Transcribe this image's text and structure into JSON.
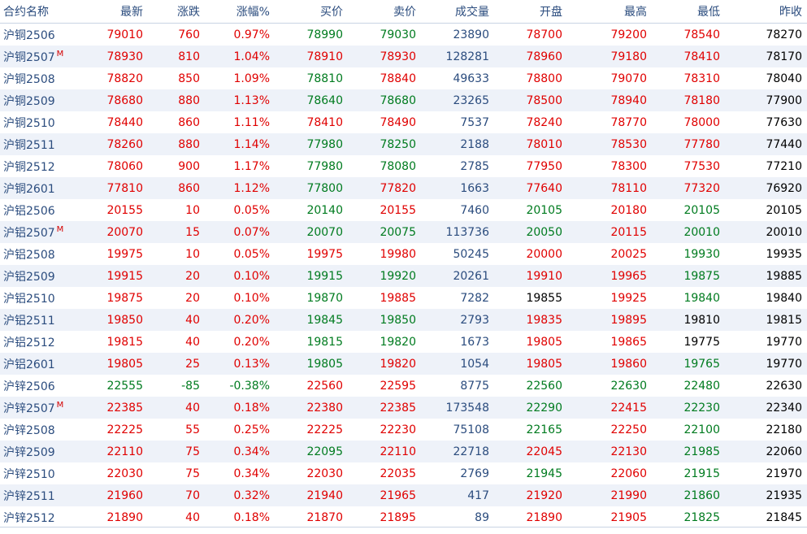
{
  "headers": [
    "合约名称",
    "最新",
    "涨跌",
    "涨幅%",
    "买价",
    "卖价",
    "成交量",
    "开盘",
    "最高",
    "最低",
    "昨收"
  ],
  "colors": {
    "up": "#e00000",
    "down": "#007b1f",
    "flat": "#000000",
    "volume": "#2b4c7e"
  },
  "rows": [
    {
      "name": "沪铜2506",
      "mark": "",
      "cells": [
        [
          "79010",
          "up"
        ],
        [
          "760",
          "up"
        ],
        [
          "0.97%",
          "up"
        ],
        [
          "78990",
          "down"
        ],
        [
          "79030",
          "down"
        ],
        [
          "23890",
          "vol"
        ],
        [
          "78700",
          "up"
        ],
        [
          "79200",
          "up"
        ],
        [
          "78540",
          "up"
        ],
        [
          "78270",
          "flat"
        ]
      ]
    },
    {
      "name": "沪铜2507",
      "mark": "M",
      "cells": [
        [
          "78930",
          "up"
        ],
        [
          "810",
          "up"
        ],
        [
          "1.04%",
          "up"
        ],
        [
          "78910",
          "up"
        ],
        [
          "78930",
          "up"
        ],
        [
          "128281",
          "vol"
        ],
        [
          "78960",
          "up"
        ],
        [
          "79180",
          "up"
        ],
        [
          "78410",
          "up"
        ],
        [
          "78170",
          "flat"
        ]
      ]
    },
    {
      "name": "沪铜2508",
      "mark": "",
      "cells": [
        [
          "78820",
          "up"
        ],
        [
          "850",
          "up"
        ],
        [
          "1.09%",
          "up"
        ],
        [
          "78810",
          "down"
        ],
        [
          "78840",
          "up"
        ],
        [
          "49633",
          "vol"
        ],
        [
          "78800",
          "up"
        ],
        [
          "79070",
          "up"
        ],
        [
          "78310",
          "up"
        ],
        [
          "78040",
          "flat"
        ]
      ]
    },
    {
      "name": "沪铜2509",
      "mark": "",
      "cells": [
        [
          "78680",
          "up"
        ],
        [
          "880",
          "up"
        ],
        [
          "1.13%",
          "up"
        ],
        [
          "78640",
          "down"
        ],
        [
          "78680",
          "down"
        ],
        [
          "23265",
          "vol"
        ],
        [
          "78500",
          "up"
        ],
        [
          "78940",
          "up"
        ],
        [
          "78180",
          "up"
        ],
        [
          "77900",
          "flat"
        ]
      ]
    },
    {
      "name": "沪铜2510",
      "mark": "",
      "cells": [
        [
          "78440",
          "up"
        ],
        [
          "860",
          "up"
        ],
        [
          "1.11%",
          "up"
        ],
        [
          "78410",
          "up"
        ],
        [
          "78490",
          "up"
        ],
        [
          "7537",
          "vol"
        ],
        [
          "78240",
          "up"
        ],
        [
          "78770",
          "up"
        ],
        [
          "78000",
          "up"
        ],
        [
          "77630",
          "flat"
        ]
      ]
    },
    {
      "name": "沪铜2511",
      "mark": "",
      "cells": [
        [
          "78260",
          "up"
        ],
        [
          "880",
          "up"
        ],
        [
          "1.14%",
          "up"
        ],
        [
          "77980",
          "down"
        ],
        [
          "78250",
          "down"
        ],
        [
          "2188",
          "vol"
        ],
        [
          "78010",
          "up"
        ],
        [
          "78530",
          "up"
        ],
        [
          "77780",
          "up"
        ],
        [
          "77440",
          "flat"
        ]
      ]
    },
    {
      "name": "沪铜2512",
      "mark": "",
      "cells": [
        [
          "78060",
          "up"
        ],
        [
          "900",
          "up"
        ],
        [
          "1.17%",
          "up"
        ],
        [
          "77980",
          "down"
        ],
        [
          "78080",
          "down"
        ],
        [
          "2785",
          "vol"
        ],
        [
          "77950",
          "up"
        ],
        [
          "78300",
          "up"
        ],
        [
          "77530",
          "up"
        ],
        [
          "77210",
          "flat"
        ]
      ]
    },
    {
      "name": "沪铜2601",
      "mark": "",
      "cells": [
        [
          "77810",
          "up"
        ],
        [
          "860",
          "up"
        ],
        [
          "1.12%",
          "up"
        ],
        [
          "77800",
          "down"
        ],
        [
          "77820",
          "up"
        ],
        [
          "1663",
          "vol"
        ],
        [
          "77640",
          "up"
        ],
        [
          "78110",
          "up"
        ],
        [
          "77320",
          "up"
        ],
        [
          "76920",
          "flat"
        ]
      ]
    },
    {
      "name": "沪铝2506",
      "mark": "",
      "cells": [
        [
          "20155",
          "up"
        ],
        [
          "10",
          "up"
        ],
        [
          "0.05%",
          "up"
        ],
        [
          "20140",
          "down"
        ],
        [
          "20155",
          "up"
        ],
        [
          "7460",
          "vol"
        ],
        [
          "20105",
          "down"
        ],
        [
          "20180",
          "up"
        ],
        [
          "20105",
          "down"
        ],
        [
          "20105",
          "flat"
        ]
      ]
    },
    {
      "name": "沪铝2507",
      "mark": "M",
      "cells": [
        [
          "20070",
          "up"
        ],
        [
          "15",
          "up"
        ],
        [
          "0.07%",
          "up"
        ],
        [
          "20070",
          "down"
        ],
        [
          "20075",
          "down"
        ],
        [
          "113736",
          "vol"
        ],
        [
          "20050",
          "down"
        ],
        [
          "20115",
          "up"
        ],
        [
          "20010",
          "down"
        ],
        [
          "20010",
          "flat"
        ]
      ]
    },
    {
      "name": "沪铝2508",
      "mark": "",
      "cells": [
        [
          "19975",
          "up"
        ],
        [
          "10",
          "up"
        ],
        [
          "0.05%",
          "up"
        ],
        [
          "19975",
          "up"
        ],
        [
          "19980",
          "up"
        ],
        [
          "50245",
          "vol"
        ],
        [
          "20000",
          "up"
        ],
        [
          "20025",
          "up"
        ],
        [
          "19930",
          "down"
        ],
        [
          "19935",
          "flat"
        ]
      ]
    },
    {
      "name": "沪铝2509",
      "mark": "",
      "cells": [
        [
          "19915",
          "up"
        ],
        [
          "20",
          "up"
        ],
        [
          "0.10%",
          "up"
        ],
        [
          "19915",
          "down"
        ],
        [
          "19920",
          "down"
        ],
        [
          "20261",
          "vol"
        ],
        [
          "19910",
          "up"
        ],
        [
          "19965",
          "up"
        ],
        [
          "19875",
          "down"
        ],
        [
          "19885",
          "flat"
        ]
      ]
    },
    {
      "name": "沪铝2510",
      "mark": "",
      "cells": [
        [
          "19875",
          "up"
        ],
        [
          "20",
          "up"
        ],
        [
          "0.10%",
          "up"
        ],
        [
          "19870",
          "down"
        ],
        [
          "19885",
          "up"
        ],
        [
          "7282",
          "vol"
        ],
        [
          "19855",
          "flat"
        ],
        [
          "19925",
          "up"
        ],
        [
          "19840",
          "down"
        ],
        [
          "19840",
          "flat"
        ]
      ]
    },
    {
      "name": "沪铝2511",
      "mark": "",
      "cells": [
        [
          "19850",
          "up"
        ],
        [
          "40",
          "up"
        ],
        [
          "0.20%",
          "up"
        ],
        [
          "19845",
          "down"
        ],
        [
          "19850",
          "down"
        ],
        [
          "2793",
          "vol"
        ],
        [
          "19835",
          "up"
        ],
        [
          "19895",
          "up"
        ],
        [
          "19810",
          "flat"
        ],
        [
          "19815",
          "flat"
        ]
      ]
    },
    {
      "name": "沪铝2512",
      "mark": "",
      "cells": [
        [
          "19815",
          "up"
        ],
        [
          "40",
          "up"
        ],
        [
          "0.20%",
          "up"
        ],
        [
          "19815",
          "down"
        ],
        [
          "19820",
          "down"
        ],
        [
          "1673",
          "vol"
        ],
        [
          "19805",
          "up"
        ],
        [
          "19865",
          "up"
        ],
        [
          "19775",
          "flat"
        ],
        [
          "19770",
          "flat"
        ]
      ]
    },
    {
      "name": "沪铝2601",
      "mark": "",
      "cells": [
        [
          "19805",
          "up"
        ],
        [
          "25",
          "up"
        ],
        [
          "0.13%",
          "up"
        ],
        [
          "19805",
          "down"
        ],
        [
          "19820",
          "up"
        ],
        [
          "1054",
          "vol"
        ],
        [
          "19805",
          "up"
        ],
        [
          "19860",
          "up"
        ],
        [
          "19765",
          "down"
        ],
        [
          "19770",
          "flat"
        ]
      ]
    },
    {
      "name": "沪锌2506",
      "mark": "",
      "cells": [
        [
          "22555",
          "down"
        ],
        [
          "-85",
          "down"
        ],
        [
          "-0.38%",
          "down"
        ],
        [
          "22560",
          "up"
        ],
        [
          "22595",
          "up"
        ],
        [
          "8775",
          "vol"
        ],
        [
          "22560",
          "down"
        ],
        [
          "22630",
          "down"
        ],
        [
          "22480",
          "down"
        ],
        [
          "22630",
          "flat"
        ]
      ]
    },
    {
      "name": "沪锌2507",
      "mark": "M",
      "cells": [
        [
          "22385",
          "up"
        ],
        [
          "40",
          "up"
        ],
        [
          "0.18%",
          "up"
        ],
        [
          "22380",
          "up"
        ],
        [
          "22385",
          "up"
        ],
        [
          "173548",
          "vol"
        ],
        [
          "22290",
          "down"
        ],
        [
          "22415",
          "up"
        ],
        [
          "22230",
          "down"
        ],
        [
          "22340",
          "flat"
        ]
      ]
    },
    {
      "name": "沪锌2508",
      "mark": "",
      "cells": [
        [
          "22225",
          "up"
        ],
        [
          "55",
          "up"
        ],
        [
          "0.25%",
          "up"
        ],
        [
          "22225",
          "up"
        ],
        [
          "22230",
          "up"
        ],
        [
          "75108",
          "vol"
        ],
        [
          "22165",
          "down"
        ],
        [
          "22250",
          "up"
        ],
        [
          "22100",
          "down"
        ],
        [
          "22180",
          "flat"
        ]
      ]
    },
    {
      "name": "沪锌2509",
      "mark": "",
      "cells": [
        [
          "22110",
          "up"
        ],
        [
          "75",
          "up"
        ],
        [
          "0.34%",
          "up"
        ],
        [
          "22095",
          "down"
        ],
        [
          "22110",
          "up"
        ],
        [
          "22718",
          "vol"
        ],
        [
          "22045",
          "up"
        ],
        [
          "22130",
          "up"
        ],
        [
          "21985",
          "down"
        ],
        [
          "22060",
          "flat"
        ]
      ]
    },
    {
      "name": "沪锌2510",
      "mark": "",
      "cells": [
        [
          "22030",
          "up"
        ],
        [
          "75",
          "up"
        ],
        [
          "0.34%",
          "up"
        ],
        [
          "22030",
          "up"
        ],
        [
          "22035",
          "up"
        ],
        [
          "2769",
          "vol"
        ],
        [
          "21945",
          "down"
        ],
        [
          "22060",
          "up"
        ],
        [
          "21915",
          "down"
        ],
        [
          "21970",
          "flat"
        ]
      ]
    },
    {
      "name": "沪锌2511",
      "mark": "",
      "cells": [
        [
          "21960",
          "up"
        ],
        [
          "70",
          "up"
        ],
        [
          "0.32%",
          "up"
        ],
        [
          "21940",
          "up"
        ],
        [
          "21965",
          "up"
        ],
        [
          "417",
          "vol"
        ],
        [
          "21920",
          "up"
        ],
        [
          "21990",
          "up"
        ],
        [
          "21860",
          "down"
        ],
        [
          "21935",
          "flat"
        ]
      ]
    },
    {
      "name": "沪锌2512",
      "mark": "",
      "cells": [
        [
          "21890",
          "up"
        ],
        [
          "40",
          "up"
        ],
        [
          "0.18%",
          "up"
        ],
        [
          "21870",
          "up"
        ],
        [
          "21895",
          "up"
        ],
        [
          "89",
          "vol"
        ],
        [
          "21890",
          "up"
        ],
        [
          "21905",
          "up"
        ],
        [
          "21825",
          "down"
        ],
        [
          "21845",
          "flat"
        ]
      ]
    }
  ]
}
